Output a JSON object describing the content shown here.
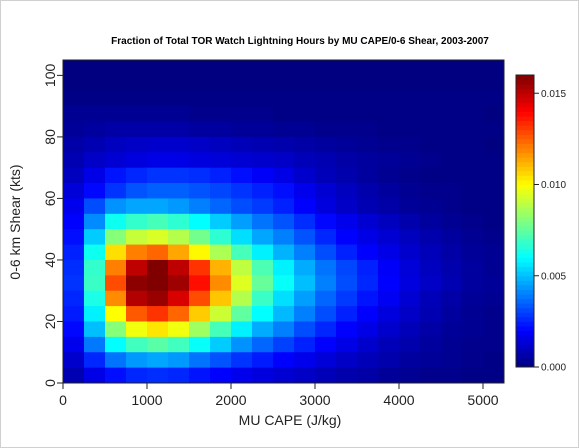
{
  "chart_data": {
    "type": "heatmap",
    "title": "Fraction of Total TOR Watch Lightning Hours by MU CAPE/0-6 Shear, 2003-2007",
    "xlabel": "MU CAPE (J/kg)",
    "ylabel": "0-6 km Shear (kts)",
    "xlim": [
      0,
      5250
    ],
    "ylim": [
      0,
      105
    ],
    "x_bin_width": 250,
    "y_bin_width": 5,
    "x_ticks": [
      0,
      1000,
      2000,
      3000,
      4000,
      5000
    ],
    "y_ticks": [
      0,
      20,
      40,
      60,
      80,
      100
    ],
    "colorbar": {
      "min": 0.0,
      "max": 0.016,
      "ticks": [
        0.0,
        0.005,
        0.01,
        0.015
      ],
      "tick_labels": [
        "0.000",
        "0.005",
        "0.010",
        "0.015"
      ],
      "colormap": "jet"
    },
    "missing_value": -1,
    "grid_rows_top_to_bottom": [
      [
        0.0,
        0.0,
        0.0,
        0.0,
        0.0,
        0.0,
        0.0,
        0.0,
        0.0,
        0.0,
        0.0,
        0.0,
        0.0,
        0.0,
        0.0,
        0.0,
        0.0,
        0.0,
        0.0,
        0.0,
        0.0
      ],
      [
        0.0,
        0.0,
        0.0,
        0.0,
        0.0,
        0.0,
        0.0,
        0.0,
        0.0,
        0.0,
        0.0,
        0.0,
        0.0,
        0.0,
        0.0,
        0.0,
        0.0,
        0.0,
        0.0,
        0.0,
        0.0
      ],
      [
        0.0001,
        0.0001,
        0.0001,
        0.0001,
        0.0001,
        0.0001,
        0.0001,
        0.0001,
        0.0001,
        0.0001,
        0.0001,
        0.0001,
        0.0001,
        0.0001,
        0.0001,
        0.0001,
        0.0001,
        0.0001,
        0.0001,
        0.0001,
        0.0001
      ],
      [
        0.0003,
        0.0003,
        0.0003,
        0.0003,
        0.0003,
        0.0003,
        0.0002,
        0.0002,
        0.0002,
        0.0002,
        0.0001,
        0.0001,
        0.0001,
        0.0001,
        0.0001,
        0.0001,
        0.0001,
        0.0001,
        0.0001,
        0.0001,
        0.0
      ],
      [
        0.0004,
        0.0005,
        0.0006,
        0.0006,
        0.0006,
        0.0006,
        0.0005,
        0.0005,
        0.0004,
        0.0004,
        0.0003,
        0.0003,
        0.0002,
        0.0002,
        0.0002,
        0.0001,
        0.0001,
        0.0001,
        0.0001,
        0.0001,
        0.0001
      ],
      [
        0.0006,
        0.0008,
        0.001,
        0.0011,
        0.0012,
        0.0012,
        0.0011,
        0.001,
        0.0009,
        0.0008,
        0.0007,
        0.0006,
        0.0005,
        0.0004,
        0.0003,
        0.0002,
        0.0002,
        0.0001,
        0.0001,
        0.0001,
        0.0
      ],
      [
        0.0008,
        0.0011,
        0.0013,
        0.0015,
        0.0016,
        0.0016,
        0.0015,
        0.0014,
        0.0013,
        0.0012,
        0.0011,
        0.0009,
        0.0008,
        0.0006,
        0.0005,
        0.0004,
        0.0003,
        0.0002,
        0.0001,
        0.0001,
        0.0001
      ],
      [
        0.001,
        0.0016,
        0.0023,
        0.0026,
        0.0028,
        0.0028,
        0.0027,
        0.0025,
        0.0022,
        0.0019,
        0.0016,
        0.0012,
        0.0009,
        0.0007,
        0.0005,
        0.0003,
        0.0002,
        0.0001,
        0.0001,
        0.0001,
        0.0001
      ],
      [
        0.0014,
        0.0021,
        0.0028,
        0.0033,
        0.0035,
        0.0035,
        0.0033,
        0.0031,
        0.0028,
        0.0025,
        0.0022,
        0.0017,
        0.0013,
        0.001,
        0.0007,
        0.0005,
        0.0003,
        0.0002,
        0.0002,
        0.0001,
        0.0001
      ],
      [
        0.0017,
        0.0032,
        0.0043,
        0.0046,
        0.0046,
        0.0044,
        0.004,
        0.0036,
        0.0032,
        0.0029,
        0.0025,
        0.002,
        0.0015,
        0.0011,
        0.0008,
        0.0006,
        0.0004,
        0.0003,
        0.0002,
        0.0001,
        0.0001
      ],
      [
        0.002,
        0.0042,
        0.0062,
        0.0068,
        0.0071,
        0.0067,
        0.006,
        0.0052,
        0.0045,
        0.0038,
        0.0033,
        0.0027,
        0.0021,
        0.0017,
        0.0013,
        0.001,
        0.0007,
        0.0005,
        0.0003,
        0.0002,
        0.0001
      ],
      [
        0.0022,
        0.0052,
        0.0081,
        0.0091,
        0.0094,
        0.0088,
        0.0078,
        0.0067,
        0.0055,
        0.0046,
        0.004,
        0.0033,
        0.0026,
        0.002,
        0.0016,
        0.0013,
        0.001,
        0.0007,
        0.0005,
        0.0003,
        0.0002
      ],
      [
        0.0025,
        0.0062,
        0.0105,
        0.012,
        0.0124,
        0.0114,
        0.0101,
        0.0087,
        0.0071,
        0.0058,
        0.0048,
        0.004,
        0.0032,
        0.0025,
        0.002,
        0.0016,
        0.0012,
        0.0009,
        0.0006,
        0.0004,
        0.0003
      ],
      [
        0.0027,
        0.0068,
        0.012,
        0.015,
        0.016,
        0.015,
        0.0132,
        0.0112,
        0.009,
        0.0072,
        0.0058,
        0.0047,
        0.0038,
        0.0031,
        0.0025,
        0.0019,
        0.0014,
        0.001,
        0.0007,
        0.0005,
        0.0003
      ],
      [
        0.0028,
        0.0069,
        0.0128,
        0.0158,
        0.0162,
        0.0155,
        0.0138,
        0.0118,
        0.0095,
        0.0076,
        0.0061,
        0.005,
        0.004,
        0.0032,
        0.0026,
        0.002,
        0.0015,
        0.0011,
        0.0008,
        0.0005,
        0.0004
      ],
      [
        0.0026,
        0.0064,
        0.0118,
        0.0152,
        0.0156,
        0.0146,
        0.0128,
        0.0109,
        0.0088,
        0.0069,
        0.0055,
        0.0045,
        0.0036,
        0.0029,
        0.0023,
        0.0018,
        0.0013,
        0.0009,
        0.0006,
        0.0004,
        0.0003
      ],
      [
        0.0024,
        0.0058,
        0.01,
        0.0126,
        0.0132,
        0.0124,
        0.0108,
        0.0092,
        0.0075,
        0.006,
        0.0049,
        0.004,
        0.0032,
        0.0025,
        0.002,
        0.0015,
        0.0011,
        0.0008,
        0.0005,
        0.0003,
        0.0002
      ],
      [
        0.0021,
        0.005,
        0.0081,
        0.0098,
        0.0104,
        0.0098,
        0.0085,
        0.0071,
        0.0058,
        0.0047,
        0.004,
        0.0032,
        0.0026,
        0.002,
        0.0016,
        0.0012,
        0.0009,
        0.0006,
        0.0004,
        0.0003,
        0.0002
      ],
      [
        0.0017,
        0.0039,
        0.006,
        0.007,
        0.0074,
        0.007,
        0.0061,
        0.0052,
        0.0043,
        0.0036,
        0.003,
        0.0025,
        0.002,
        0.0016,
        0.0012,
        0.0009,
        0.0007,
        0.0005,
        0.0003,
        0.0002,
        0.0002
      ],
      [
        0.0012,
        0.0026,
        0.0038,
        0.0044,
        0.0046,
        0.0044,
        0.0038,
        0.0033,
        0.0028,
        0.0024,
        0.002,
        0.0017,
        0.0014,
        0.0011,
        0.0009,
        0.0007,
        0.0005,
        0.0004,
        0.0003,
        0.0002,
        0.0001
      ],
      [
        0.0008,
        0.0016,
        0.0022,
        0.0026,
        0.0027,
        0.0026,
        0.0023,
        0.002,
        0.0017,
        0.0015,
        0.0013,
        0.0011,
        0.0009,
        0.0007,
        0.0006,
        0.0004,
        0.0003,
        0.0002,
        0.0002,
        0.0001,
        0.0001
      ]
    ]
  }
}
